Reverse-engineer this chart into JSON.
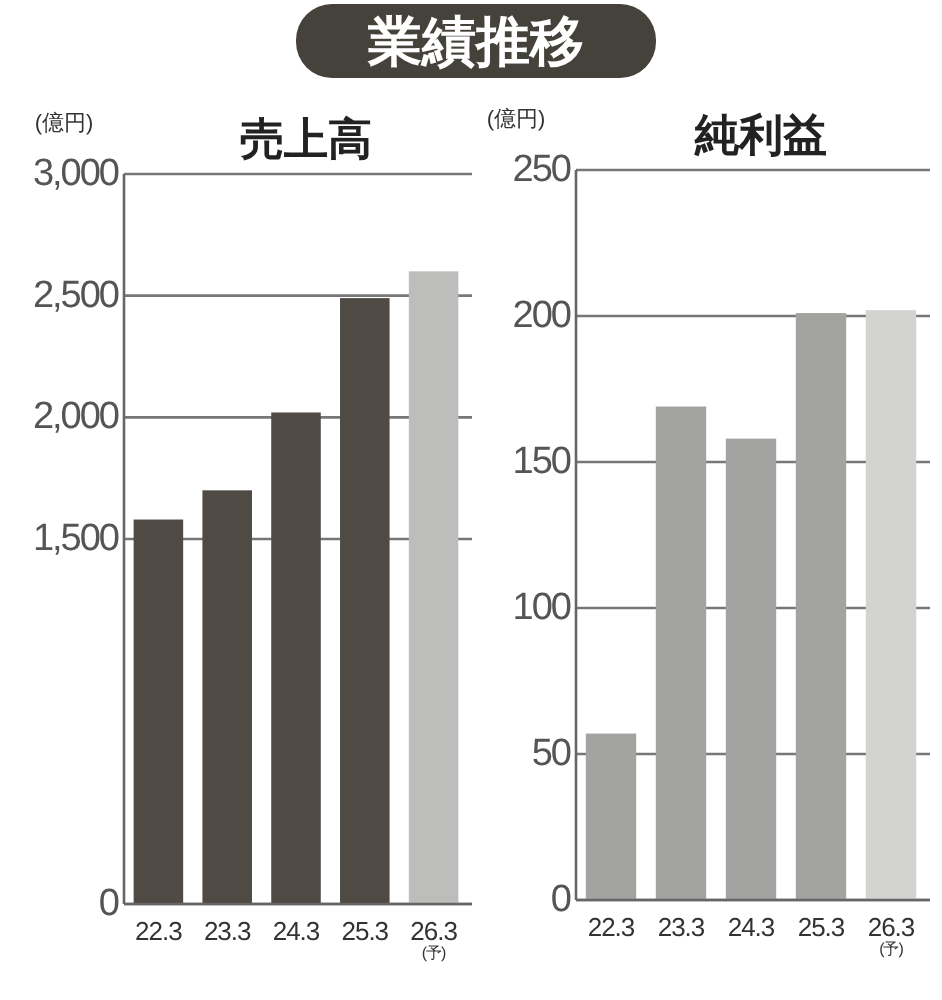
{
  "chart_data": [
    {
      "type": "bar",
      "title": "売上高",
      "ylabel": "(億円)",
      "annotations": [
        "業績推移"
      ],
      "categories": [
        "22.3",
        "23.3",
        "24.3",
        "25.3",
        "26.3\n(予)"
      ],
      "values": [
        1580,
        1700,
        2020,
        2490,
        2600
      ],
      "colors": [
        "#4f4a43",
        "#4f4a43",
        "#4f4a43",
        "#4f4a43",
        "#bdbdbb"
      ],
      "ylim": [
        0,
        3000
      ],
      "yticks": [
        {
          "value": 0,
          "label": "0"
        },
        {
          "value": 1500,
          "label": "1,500"
        },
        {
          "value": 2000,
          "label": "2,000"
        },
        {
          "value": 2500,
          "label": "2,500"
        },
        {
          "value": 3000,
          "label": "3,000"
        }
      ],
      "grid": "y"
    },
    {
      "type": "bar",
      "title": "純利益",
      "ylabel": "(億円)",
      "categories": [
        "22.3",
        "23.3",
        "24.3",
        "25.3",
        "26.3\n(予)"
      ],
      "values": [
        57,
        169,
        158,
        201,
        202
      ],
      "colors": [
        "#a3a3a1",
        "#a3a3a1",
        "#a3a3a1",
        "#a3a3a1",
        "#d3d3d1"
      ],
      "ylim": [
        0,
        250
      ],
      "yticks": [
        0,
        50,
        100,
        150,
        200,
        250
      ],
      "grid": "y"
    }
  ]
}
